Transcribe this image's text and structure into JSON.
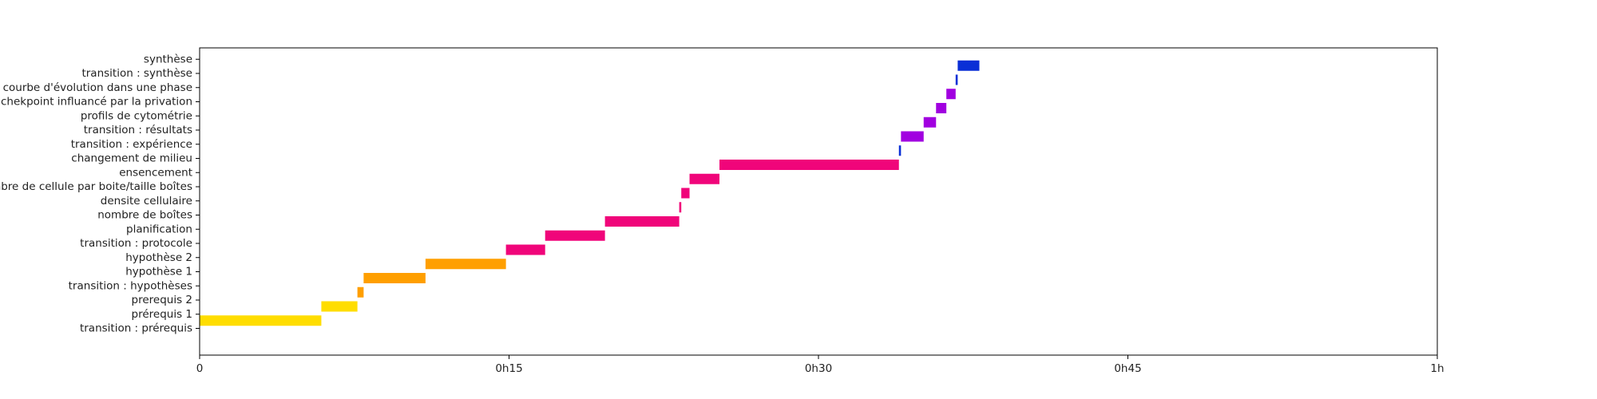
{
  "chart_data": {
    "type": "gantt",
    "title": "",
    "xlabel": "",
    "ylabel": "",
    "x_unit": "minutes",
    "xlim": [
      0,
      60
    ],
    "x_ticks": [
      {
        "value": 0,
        "label": "0"
      },
      {
        "value": 15,
        "label": "0h15"
      },
      {
        "value": 30,
        "label": "0h30"
      },
      {
        "value": 45,
        "label": "0h45"
      },
      {
        "value": 60,
        "label": "1h"
      }
    ],
    "grid": false,
    "legend": "none",
    "tasks": [
      {
        "name": "transition : prérequis",
        "start": 0.0,
        "end": 0.0,
        "color": "#ffdd00"
      },
      {
        "name": "prérequis 1",
        "start": 0.0,
        "end": 5.9,
        "color": "#ffdd00"
      },
      {
        "name": "prerequis 2",
        "start": 5.9,
        "end": 7.65,
        "color": "#ffdd00"
      },
      {
        "name": "transition : hypothèses",
        "start": 7.65,
        "end": 7.95,
        "color": "#ff9f00"
      },
      {
        "name": "hypothèse 1",
        "start": 7.95,
        "end": 10.95,
        "color": "#ff9f00"
      },
      {
        "name": "hypothèse 2",
        "start": 10.95,
        "end": 14.85,
        "color": "#ff9f00"
      },
      {
        "name": "transition : protocole",
        "start": 14.85,
        "end": 16.75,
        "color": "#f0057a"
      },
      {
        "name": "planification",
        "start": 16.75,
        "end": 19.65,
        "color": "#f0057a"
      },
      {
        "name": "nombre de boîtes",
        "start": 19.65,
        "end": 23.25,
        "color": "#f0057a"
      },
      {
        "name": "densite cellulaire",
        "start": 23.25,
        "end": 23.35,
        "color": "#f0057a"
      },
      {
        "name": "nombre de cellule par boite/taille boîtes",
        "start": 23.35,
        "end": 23.75,
        "color": "#f0057a"
      },
      {
        "name": "ensencement",
        "start": 23.75,
        "end": 25.2,
        "color": "#f0057a"
      },
      {
        "name": "changement de milieu",
        "start": 25.2,
        "end": 33.9,
        "color": "#f0057a"
      },
      {
        "name": "transition : expérience",
        "start": 33.9,
        "end": 34.0,
        "color": "#0a2fd6"
      },
      {
        "name": "transition : résultats",
        "start": 34.0,
        "end": 35.1,
        "color": "#a100e0"
      },
      {
        "name": "profils de cytométrie",
        "start": 35.1,
        "end": 35.7,
        "color": "#a100e0"
      },
      {
        "name": "chekpoint influancé par la privation",
        "start": 35.7,
        "end": 36.2,
        "color": "#a100e0"
      },
      {
        "name": "courbe d'évolution dans une phase",
        "start": 36.2,
        "end": 36.65,
        "color": "#a100e0"
      },
      {
        "name": "transition : synthèse",
        "start": 36.65,
        "end": 36.75,
        "color": "#0a2fd6"
      },
      {
        "name": "synthèse",
        "start": 36.75,
        "end": 37.8,
        "color": "#0a2fd6"
      }
    ]
  }
}
